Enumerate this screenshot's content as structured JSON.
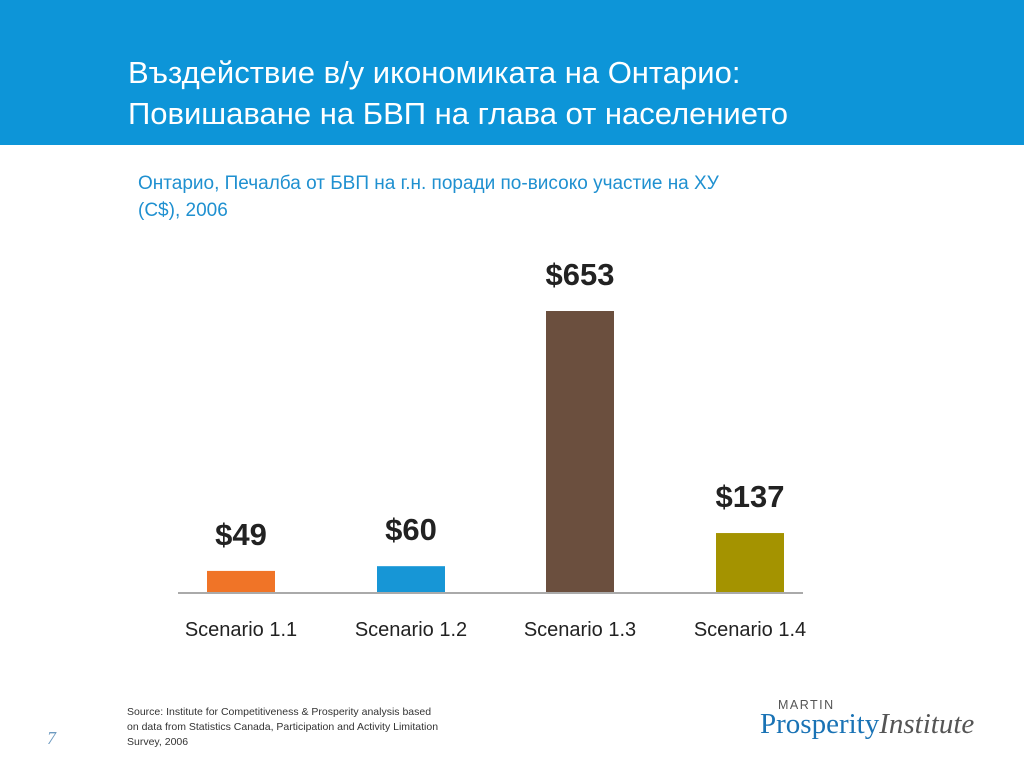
{
  "slide": {
    "title_line1": "Въздействие в/у икономиката на Онтарио:",
    "title_line2": "Повишаване на БВП на глава от населението",
    "subtitle_line1": "Онтарио, Печалба от БВП на г.н. поради по-високо участие на ХУ",
    "subtitle_line2": "(C$), 2006",
    "source_line1": "Source: Institute for Competitiveness & Prosperity analysis based",
    "source_line2": "on data from Statistics Canada, Participation and Activity Limitation",
    "source_line3": "Survey, 2006",
    "page_number": "7",
    "header_color": "#0d95d8"
  },
  "logo": {
    "top_text": "MARTIN",
    "word1": "Prosperity",
    "word2": "Institute"
  },
  "chart_data": {
    "type": "bar",
    "categories": [
      "Scenario 1.1",
      "Scenario 1.2",
      "Scenario 1.3",
      "Scenario 1.4"
    ],
    "values": [
      49,
      60,
      653,
      137
    ],
    "data_labels": [
      "$49",
      "$60",
      "$653",
      "$137"
    ],
    "colors": [
      "#f07427",
      "#1796d6",
      "#6b4f3e",
      "#a49300"
    ],
    "ylim": [
      0,
      653
    ],
    "title": "",
    "xlabel": "",
    "ylabel": "",
    "grid": false,
    "legend": "none"
  }
}
